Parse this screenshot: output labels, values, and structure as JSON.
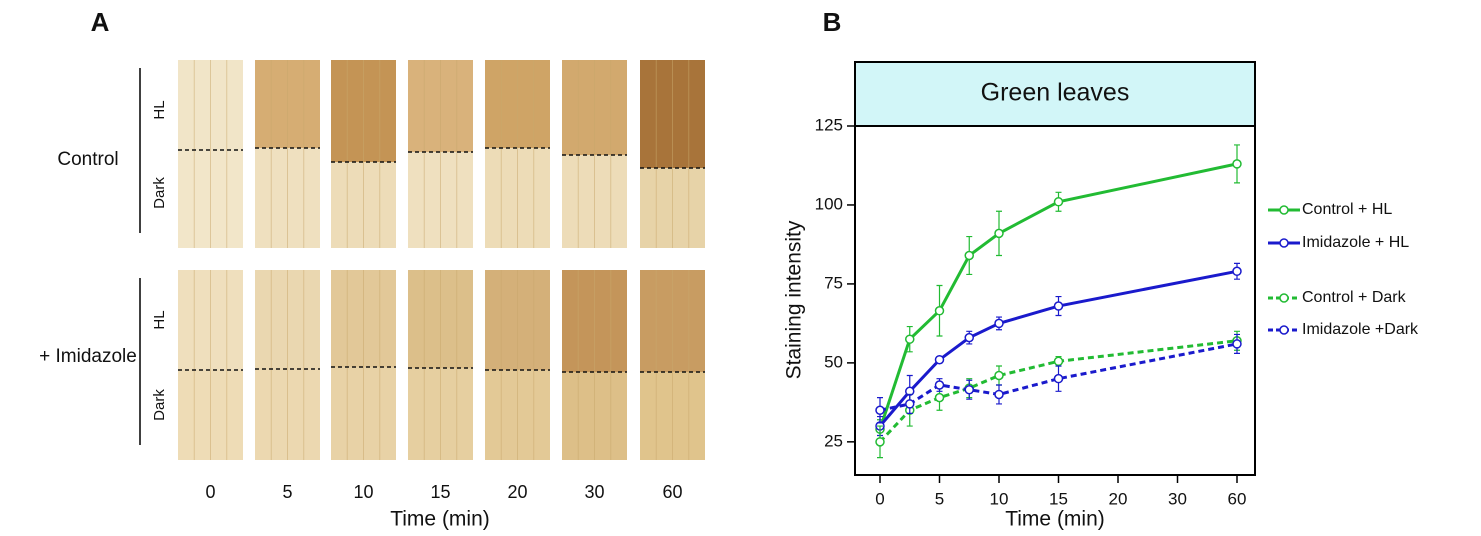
{
  "panel_a": {
    "label": "A",
    "rows": [
      {
        "label": "Control",
        "top": "HL",
        "bottom": "Dark"
      },
      {
        "label": "+ Imidazole",
        "top": "HL",
        "bottom": "Dark"
      }
    ],
    "columns": [
      "0",
      "5",
      "10",
      "15",
      "20",
      "30",
      "60"
    ],
    "xlabel": "Time (min)"
  },
  "chart_data": {
    "type": "line",
    "panel_label": "B",
    "title": "Green leaves",
    "xlabel": "Time (min)",
    "ylabel": "Staining intensity",
    "x": [
      0,
      2.5,
      5,
      7.5,
      10,
      15,
      60
    ],
    "xlim": [
      0,
      60
    ],
    "xticks": [
      0,
      5,
      10,
      15,
      20,
      30,
      60
    ],
    "ylim": [
      14.5,
      125
    ],
    "yticks": [
      25,
      50,
      75,
      100,
      125
    ],
    "series": [
      {
        "name": "Control + HL",
        "color": "#22bb33",
        "dashed": false,
        "values": [
          29,
          57.5,
          66.5,
          84,
          91,
          101,
          113
        ],
        "errors": [
          3,
          4,
          8,
          6,
          7,
          3,
          6
        ]
      },
      {
        "name": "Imidazole + HL",
        "color": "#1a1acc",
        "dashed": false,
        "values": [
          30,
          41,
          51,
          58,
          62.5,
          68,
          79
        ],
        "errors": [
          3,
          5,
          1,
          2,
          2,
          3,
          2.5
        ]
      },
      {
        "name": "Control + Dark",
        "color": "#22bb33",
        "dashed": true,
        "values": [
          25,
          35,
          39,
          42,
          46,
          50.5,
          57
        ],
        "errors": [
          5,
          5,
          4,
          3,
          3,
          1.5,
          3
        ]
      },
      {
        "name": "Imidazole +Dark",
        "color": "#1a1acc",
        "dashed": true,
        "values": [
          35,
          37,
          43,
          41.5,
          40,
          45,
          56
        ],
        "errors": [
          4,
          3,
          2,
          3,
          3,
          4,
          3
        ]
      }
    ]
  }
}
